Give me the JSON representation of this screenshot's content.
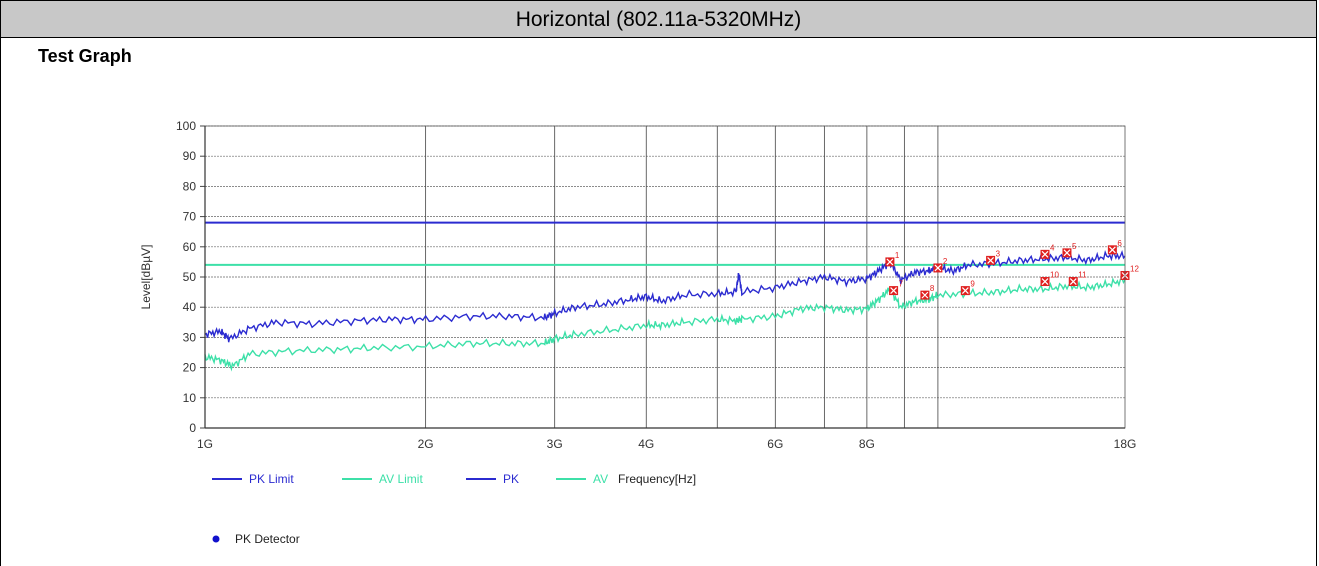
{
  "header": {
    "title": "Horizontal (802.11a-5320MHz)"
  },
  "section": {
    "title": "Test Graph"
  },
  "colors": {
    "pk": "#2b2bd0",
    "av": "#3de0a8",
    "marker": "#e02020",
    "grid": "#666666",
    "detector_dot": "#1111cc"
  },
  "chart_data": {
    "type": "line",
    "xscale": "log",
    "xlim": [
      1000000000,
      18000000000
    ],
    "ylim": [
      0,
      100
    ],
    "ylabel": "Level[dBµV]",
    "xlabel": "Frequency[Hz]",
    "y_ticks": [
      0,
      10,
      20,
      30,
      40,
      50,
      60,
      70,
      80,
      90,
      100
    ],
    "x_ticks": [
      {
        "value": 1000000000,
        "label": "1G"
      },
      {
        "value": 2000000000,
        "label": "2G"
      },
      {
        "value": 3000000000,
        "label": "3G"
      },
      {
        "value": 4000000000,
        "label": "4G"
      },
      {
        "value": 6000000000,
        "label": "6G"
      },
      {
        "value": 8000000000,
        "label": "8G"
      },
      {
        "value": 18000000000,
        "label": "18G"
      }
    ],
    "x_gridlines": [
      2000000000,
      3000000000,
      4000000000,
      5000000000,
      6000000000,
      7000000000,
      8000000000,
      9000000000,
      10000000000
    ],
    "limits": [
      {
        "name": "PK Limit",
        "value": 68,
        "color": "#2b2bd0"
      },
      {
        "name": "AV Limit",
        "value": 54,
        "color": "#3de0a8"
      }
    ],
    "series": [
      {
        "name": "PK",
        "color": "#2b2bd0",
        "points": [
          [
            1000000000,
            31
          ],
          [
            1050000000,
            32
          ],
          [
            1080000000,
            29.5
          ],
          [
            1150000000,
            33
          ],
          [
            1250000000,
            35
          ],
          [
            1400000000,
            34.5
          ],
          [
            1600000000,
            35.5
          ],
          [
            1800000000,
            36
          ],
          [
            2000000000,
            36
          ],
          [
            2300000000,
            37
          ],
          [
            2600000000,
            37
          ],
          [
            2900000000,
            36.5
          ],
          [
            3000000000,
            38
          ],
          [
            3200000000,
            40
          ],
          [
            3500000000,
            41
          ],
          [
            3800000000,
            42.5
          ],
          [
            4000000000,
            43.5
          ],
          [
            4200000000,
            42
          ],
          [
            4500000000,
            44
          ],
          [
            5000000000,
            44.5
          ],
          [
            5300000000,
            45
          ],
          [
            5350000000,
            51
          ],
          [
            5400000000,
            45
          ],
          [
            6000000000,
            46.5
          ],
          [
            6500000000,
            48.5
          ],
          [
            7000000000,
            50
          ],
          [
            7500000000,
            48.5
          ],
          [
            8000000000,
            49.5
          ],
          [
            8300000000,
            52
          ],
          [
            8600000000,
            55
          ],
          [
            8900000000,
            49
          ],
          [
            9300000000,
            51.5
          ],
          [
            9700000000,
            52
          ],
          [
            10000000000,
            53
          ],
          [
            10500000000,
            52
          ],
          [
            11000000000,
            54
          ],
          [
            12000000000,
            54.5
          ],
          [
            13000000000,
            55.5
          ],
          [
            14000000000,
            56
          ],
          [
            15000000000,
            56.5
          ],
          [
            16000000000,
            55.5
          ],
          [
            17000000000,
            57
          ],
          [
            18000000000,
            57
          ]
        ]
      },
      {
        "name": "AV",
        "color": "#3de0a8",
        "points": [
          [
            1000000000,
            23.5
          ],
          [
            1050000000,
            22.5
          ],
          [
            1090000000,
            20.5
          ],
          [
            1150000000,
            24.5
          ],
          [
            1300000000,
            25.5
          ],
          [
            1500000000,
            26
          ],
          [
            1700000000,
            26.5
          ],
          [
            2000000000,
            27
          ],
          [
            2300000000,
            28
          ],
          [
            2600000000,
            28
          ],
          [
            2900000000,
            28
          ],
          [
            3000000000,
            29.5
          ],
          [
            3200000000,
            31
          ],
          [
            3600000000,
            32.5
          ],
          [
            4000000000,
            34
          ],
          [
            4200000000,
            34
          ],
          [
            4500000000,
            35
          ],
          [
            5000000000,
            36
          ],
          [
            5300000000,
            35.5
          ],
          [
            5400000000,
            36
          ],
          [
            6000000000,
            37
          ],
          [
            6500000000,
            39.5
          ],
          [
            7000000000,
            40
          ],
          [
            7500000000,
            39
          ],
          [
            8000000000,
            39.5
          ],
          [
            8300000000,
            42.5
          ],
          [
            8600000000,
            46
          ],
          [
            8900000000,
            40
          ],
          [
            9300000000,
            42
          ],
          [
            9700000000,
            42.5
          ],
          [
            10000000000,
            44
          ],
          [
            11000000000,
            44.5
          ],
          [
            12000000000,
            45
          ],
          [
            13000000000,
            46
          ],
          [
            14000000000,
            46
          ],
          [
            15000000000,
            47
          ],
          [
            16000000000,
            46.5
          ],
          [
            17000000000,
            47.5
          ],
          [
            18000000000,
            49
          ]
        ]
      }
    ],
    "markers": [
      {
        "x": 8600000000,
        "y": 55,
        "label": "1"
      },
      {
        "x": 10000000000,
        "y": 53,
        "label": "2"
      },
      {
        "x": 11800000000,
        "y": 55.5,
        "label": "3"
      },
      {
        "x": 14000000000,
        "y": 57.5,
        "label": "4"
      },
      {
        "x": 15000000000,
        "y": 58,
        "label": "5"
      },
      {
        "x": 17300000000,
        "y": 59,
        "label": "6"
      },
      {
        "x": 8700000000,
        "y": 45.5,
        "label": "7"
      },
      {
        "x": 9600000000,
        "y": 44,
        "label": "8"
      },
      {
        "x": 10900000000,
        "y": 45.5,
        "label": "9"
      },
      {
        "x": 14000000000,
        "y": 48.5,
        "label": "10"
      },
      {
        "x": 15300000000,
        "y": 48.5,
        "label": "11"
      },
      {
        "x": 18000000000,
        "y": 50.5,
        "label": "12"
      }
    ],
    "legend": [
      {
        "name": "PK Limit",
        "color": "#2b2bd0"
      },
      {
        "name": "AV Limit",
        "color": "#3de0a8"
      },
      {
        "name": "PK",
        "color": "#2b2bd0"
      },
      {
        "name": "AV",
        "color": "#3de0a8"
      }
    ],
    "detector_legend": "PK Detector"
  }
}
